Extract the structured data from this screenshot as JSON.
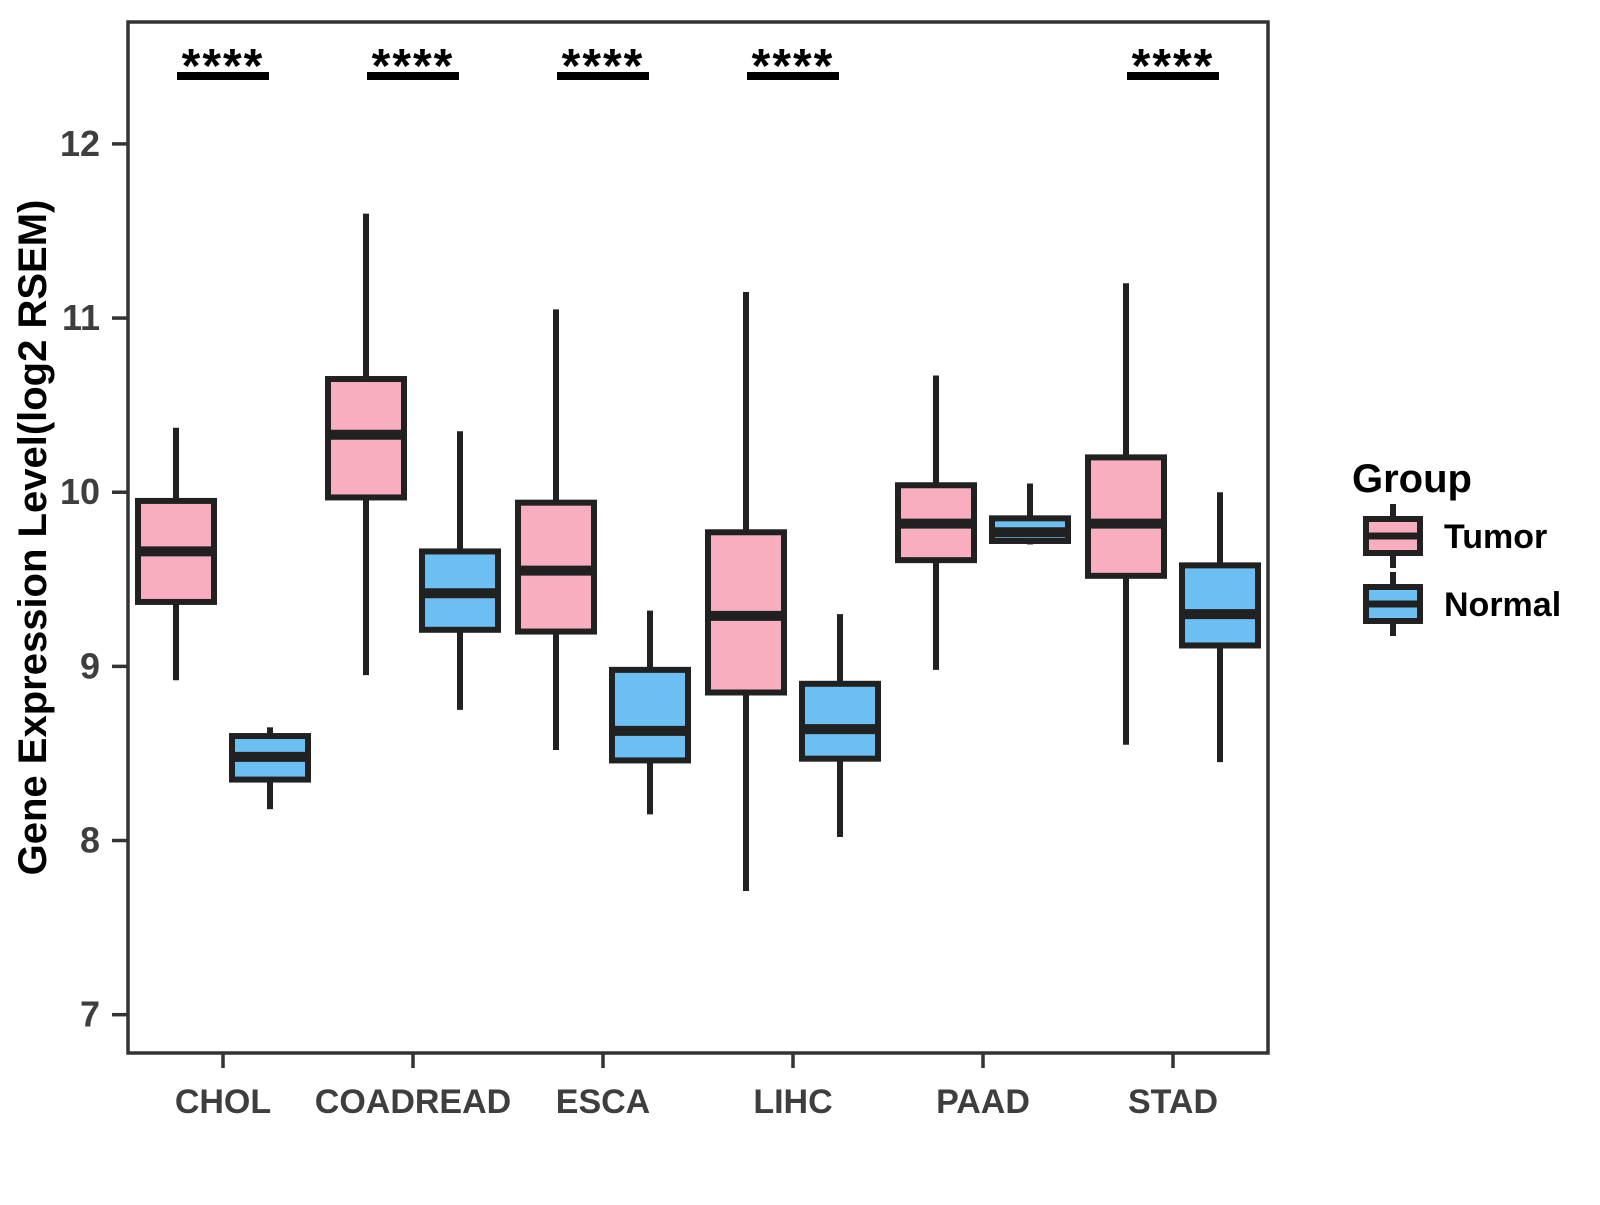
{
  "chart_data": {
    "type": "boxplot",
    "title": "",
    "xlabel": "",
    "ylabel": "Gene Expression Level(log2 RSEM)",
    "categories": [
      "CHOL",
      "COADREAD",
      "ESCA",
      "LIHC",
      "PAAD",
      "STAD"
    ],
    "yticks": [
      "7",
      "8",
      "9",
      "10",
      "11",
      "12"
    ],
    "ylim": [
      6.78,
      12.7
    ],
    "grid": "off",
    "legend_title": "Group",
    "legend_position": "right",
    "series": [
      {
        "name": "Tumor",
        "color": "#F9AEC0",
        "boxes": [
          {
            "low": 8.92,
            "q1": 9.37,
            "median": 9.66,
            "q3": 9.95,
            "high": 10.37
          },
          {
            "low": 8.95,
            "q1": 9.97,
            "median": 10.33,
            "q3": 10.65,
            "high": 11.6
          },
          {
            "low": 8.52,
            "q1": 9.2,
            "median": 9.55,
            "q3": 9.94,
            "high": 11.05
          },
          {
            "low": 7.71,
            "q1": 8.85,
            "median": 9.29,
            "q3": 9.77,
            "high": 11.15
          },
          {
            "low": 8.98,
            "q1": 9.61,
            "median": 9.82,
            "q3": 10.04,
            "high": 10.67
          },
          {
            "low": 8.55,
            "q1": 9.52,
            "median": 9.82,
            "q3": 10.2,
            "high": 11.2
          }
        ]
      },
      {
        "name": "Normal",
        "color": "#6CBFF2",
        "boxes": [
          {
            "low": 8.18,
            "q1": 8.35,
            "median": 8.48,
            "q3": 8.6,
            "high": 8.65
          },
          {
            "low": 8.75,
            "q1": 9.21,
            "median": 9.42,
            "q3": 9.66,
            "high": 10.35
          },
          {
            "low": 8.15,
            "q1": 8.46,
            "median": 8.63,
            "q3": 8.98,
            "high": 9.32
          },
          {
            "low": 8.02,
            "q1": 8.47,
            "median": 8.64,
            "q3": 8.9,
            "high": 9.3
          },
          {
            "low": 9.7,
            "q1": 9.72,
            "median": 9.77,
            "q3": 9.85,
            "high": 10.05
          },
          {
            "low": 8.45,
            "q1": 9.12,
            "median": 9.3,
            "q3": 9.58,
            "high": 10.0
          }
        ]
      }
    ],
    "significance": [
      "****",
      "****",
      "****",
      "****",
      "",
      "****"
    ]
  },
  "styles": {
    "box_border": "#212121",
    "median_color": "#212121",
    "panel_border": "#333333",
    "axis_text": "#3e3e3e",
    "title_text": "#000000",
    "star_color": "#000000",
    "background": "#ffffff"
  }
}
